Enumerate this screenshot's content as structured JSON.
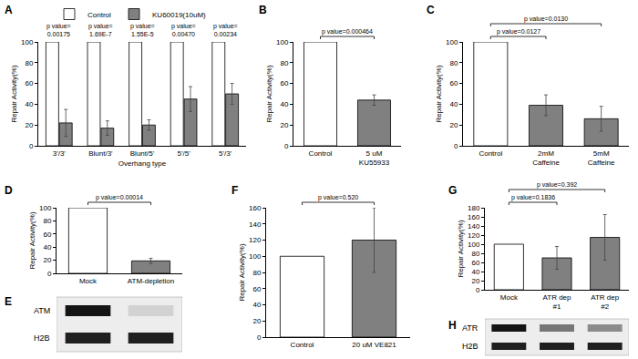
{
  "chart_data": [
    {
      "panel": "A",
      "type": "bar",
      "y_label": "Repair Activity(%)",
      "x_label": "Overhang type",
      "categories": [
        "3'/3'",
        "Blunt/3'",
        "Blunt/5'",
        "5'/5'",
        "5'/3'"
      ],
      "series": [
        {
          "name": "Control",
          "color": "#ffffff",
          "values": [
            100,
            100,
            100,
            100,
            100
          ]
        },
        {
          "name": "KU60019(10uM)",
          "color": "#808080",
          "values": [
            22,
            17,
            20,
            45,
            50
          ],
          "errors": [
            13,
            7,
            5,
            12,
            10
          ]
        }
      ],
      "ylim": [
        0,
        100
      ],
      "yticks": [
        0,
        20,
        40,
        60,
        80,
        100
      ],
      "grid": false,
      "legend": "top",
      "annotations": [
        {
          "text": "p value=0.00175",
          "category": "3'/3'"
        },
        {
          "text": "p value=1.69E-7",
          "category": "Blunt/3'"
        },
        {
          "text": "p value=1.55E-5",
          "category": "Blunt/5'"
        },
        {
          "text": "p value=0.00470",
          "category": "5'/5'"
        },
        {
          "text": "p value=0.00234",
          "category": "5'/3'"
        }
      ]
    },
    {
      "panel": "B",
      "type": "bar",
      "y_label": "Repair Activity(%)",
      "categories": [
        "Control",
        "5 uM KU55933"
      ],
      "values": [
        100,
        44
      ],
      "errors": [
        null,
        5
      ],
      "colors": [
        "#ffffff",
        "#808080"
      ],
      "ylim": [
        0,
        100
      ],
      "yticks": [
        0,
        20,
        40,
        60,
        80,
        100
      ],
      "grid": false,
      "comparisons": [
        {
          "text": "p value=0.000464",
          "between": [
            "Control",
            "5 uM KU55933"
          ]
        }
      ]
    },
    {
      "panel": "C",
      "type": "bar",
      "y_label": "Repair Activity(%)",
      "categories": [
        "Control",
        "2mM Caffeine",
        "5mM Caffeine"
      ],
      "values": [
        100,
        39,
        26
      ],
      "errors": [
        null,
        10,
        12
      ],
      "colors": [
        "#ffffff",
        "#808080",
        "#808080"
      ],
      "ylim": [
        0,
        100
      ],
      "yticks": [
        0,
        20,
        40,
        60,
        80,
        100
      ],
      "grid": false,
      "comparisons": [
        {
          "text": "p value=0.0127",
          "between": [
            "Control",
            "2mM Caffeine"
          ]
        },
        {
          "text": "p value=0.0130",
          "between": [
            "Control",
            "5mM Caffeine"
          ]
        }
      ]
    },
    {
      "panel": "D",
      "type": "bar",
      "y_label": "Repair Activity(%)",
      "categories": [
        "Mock",
        "ATM-depletion"
      ],
      "values": [
        100,
        19
      ],
      "errors": [
        null,
        4
      ],
      "colors": [
        "#ffffff",
        "#808080"
      ],
      "ylim": [
        0,
        100
      ],
      "yticks": [
        0,
        20,
        40,
        60,
        80,
        100
      ],
      "grid": false,
      "comparisons": [
        {
          "text": "p value=0.00014",
          "between": [
            "Mock",
            "ATM-depletion"
          ]
        }
      ]
    },
    {
      "panel": "E",
      "type": "blot",
      "bands": [
        {
          "label": "ATM",
          "signal": [
            1,
            0.12
          ]
        },
        {
          "label": "H2B",
          "signal": [
            0.95,
            0.95
          ]
        }
      ]
    },
    {
      "panel": "F",
      "type": "bar",
      "y_label": "Repair Activity(%)",
      "categories": [
        "Control",
        "20 uM VE821"
      ],
      "values": [
        100,
        120
      ],
      "errors": [
        null,
        40
      ],
      "colors": [
        "#ffffff",
        "#808080"
      ],
      "ylim": [
        0,
        160
      ],
      "yticks": [
        0,
        20,
        40,
        60,
        80,
        100,
        120,
        140,
        160
      ],
      "grid": false,
      "comparisons": [
        {
          "text": "p value=0.520",
          "between": [
            "Control",
            "20 uM VE821"
          ]
        }
      ]
    },
    {
      "panel": "G",
      "type": "bar",
      "y_label": "Repair Activity(%)",
      "categories": [
        "Mock",
        "ATR dep #1",
        "ATR dep #2"
      ],
      "values": [
        100,
        70,
        115
      ],
      "errors": [
        null,
        25,
        50
      ],
      "colors": [
        "#ffffff",
        "#808080",
        "#808080"
      ],
      "ylim": [
        0,
        180
      ],
      "yticks": [
        0,
        20,
        40,
        60,
        80,
        100,
        120,
        140,
        160,
        180
      ],
      "grid": false,
      "comparisons": [
        {
          "text": "p value=0.1836",
          "between": [
            "Mock",
            "ATR dep #1"
          ]
        },
        {
          "text": "p value=0.392",
          "between": [
            "Mock",
            "ATR dep #2"
          ]
        }
      ]
    },
    {
      "panel": "H",
      "type": "blot",
      "bands": [
        {
          "label": "ATR",
          "signal": [
            1,
            0.55,
            0.45
          ]
        },
        {
          "label": "H2B",
          "signal": [
            0.95,
            0.95,
            0.95
          ]
        }
      ]
    }
  ]
}
